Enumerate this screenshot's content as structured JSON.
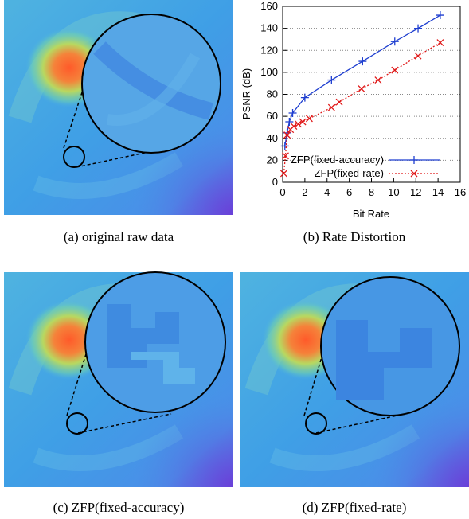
{
  "captions": [
    "(a) original raw data",
    "(b) Rate Distortion",
    "(c) ZFP(fixed-accuracy)",
    "(d) ZFP(fixed-rate)"
  ],
  "chart_data": {
    "type": "line",
    "x_label": "Bit Rate",
    "y_label": "PSNR (dB)",
    "xlim": [
      0,
      16
    ],
    "ylim": [
      0,
      160
    ],
    "xticks": [
      0,
      2,
      4,
      6,
      8,
      10,
      12,
      14,
      16
    ],
    "yticks": [
      0,
      20,
      40,
      60,
      80,
      100,
      120,
      140,
      160
    ],
    "grid": true,
    "legend": "lower-right",
    "series": [
      {
        "name": "ZFP(fixed-accuracy)",
        "color": "#1f3fd0",
        "line_style": "solid",
        "marker": "plus",
        "x": [
          0.2,
          0.4,
          0.6,
          0.9,
          2.0,
          4.4,
          7.2,
          10.1,
          12.2,
          14.2
        ],
        "values": [
          33,
          45,
          55,
          63,
          77,
          93,
          110,
          128,
          140,
          152
        ]
      },
      {
        "name": "ZFP(fixed-rate)",
        "color": "#e01818",
        "line_style": "dotted",
        "marker": "cross",
        "x": [
          0.1,
          0.25,
          0.4,
          0.7,
          1.0,
          1.4,
          1.8,
          2.4,
          4.4,
          5.1,
          7.1,
          8.6,
          10.1,
          12.2,
          14.2
        ],
        "values": [
          8,
          24,
          43,
          48,
          51,
          53,
          55,
          58,
          68,
          73,
          85,
          93,
          102,
          115,
          127
        ]
      }
    ]
  }
}
